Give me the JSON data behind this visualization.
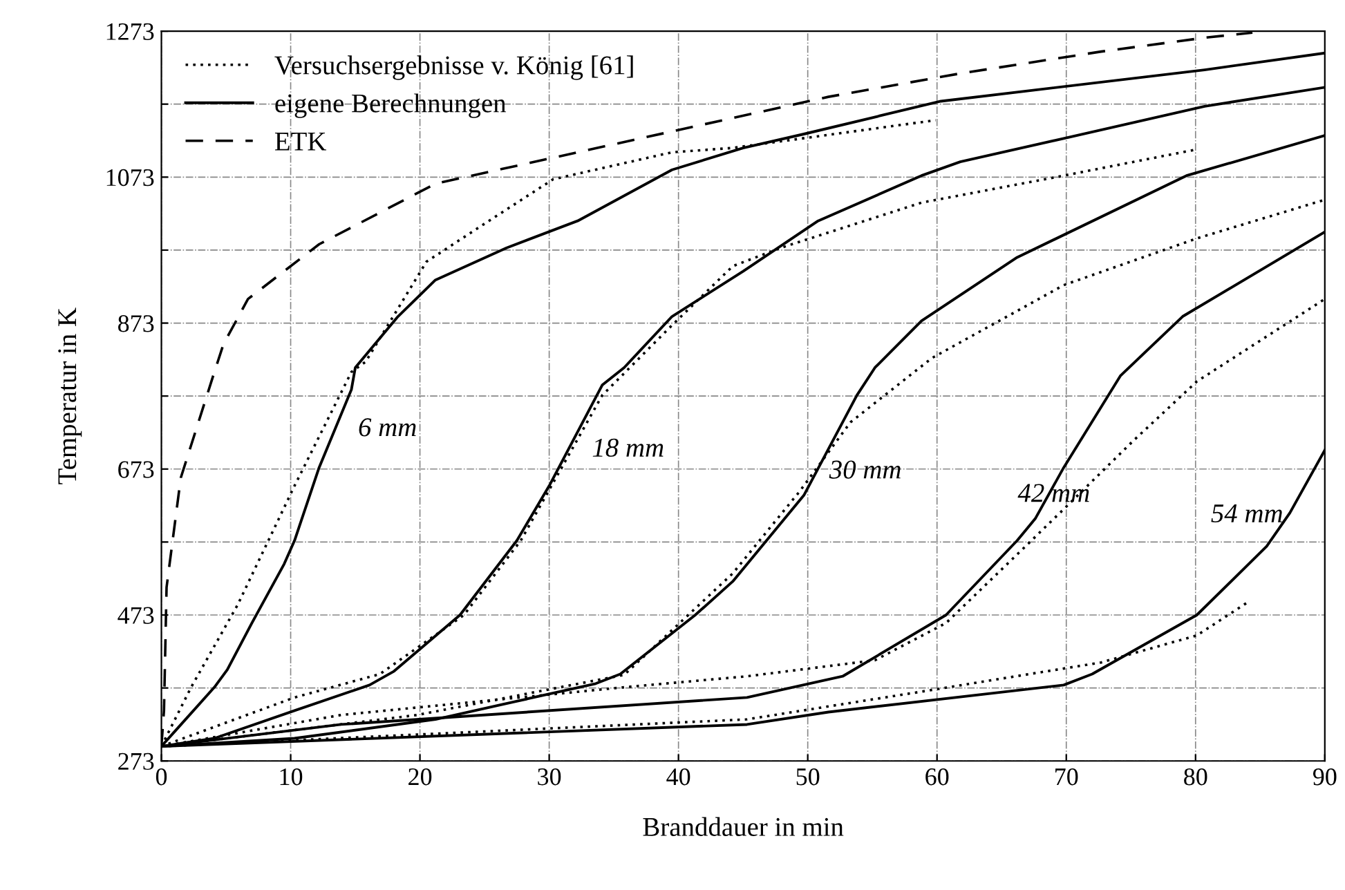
{
  "chart_data": {
    "type": "line",
    "xlabel": "Branddauer in min",
    "ylabel": "Temperatur in K",
    "xlim": [
      0,
      90
    ],
    "ylim": [
      273,
      1273
    ],
    "xticks": [
      0,
      10,
      20,
      30,
      40,
      50,
      60,
      70,
      80,
      90
    ],
    "yticks": [
      273,
      {
        "value": 373,
        "label": null
      },
      473,
      {
        "value": 573,
        "label": null
      },
      673,
      {
        "value": 773,
        "label": null
      },
      873,
      {
        "value": 973,
        "label": null
      },
      1073,
      {
        "value": 1173,
        "label": null
      },
      1273
    ],
    "grid": true,
    "legend": "top left",
    "marker": "none",
    "series": [
      {
        "name": "Versuchsergebnisse v. König [61]",
        "color": "#000000",
        "line_style": "dotted",
        "x": [
          0,
          2.3,
          5.9,
          10.3,
          14.7,
          15.8,
          20.5,
          24.9,
          30.3,
          39.5,
          44.2,
          59.9
        ],
        "values": [
          293,
          374,
          487,
          650,
          806,
          820,
          957,
          1008,
          1070,
          1107,
          1113,
          1151
        ]
      },
      {
        "name": "eigene Berechnungen",
        "color": "#000000",
        "line_style": "solid",
        "x": [
          0,
          4.1,
          5.1,
          7.0,
          9.5,
          10.3,
          12.2,
          14.7,
          15,
          18.3,
          21.2,
          26.7,
          32.2,
          39.5,
          45,
          49.7,
          60.3,
          80.7,
          90
        ],
        "values": [
          293,
          374,
          398,
          462,
          543,
          575,
          675,
          782,
          812,
          882,
          932,
          976,
          1013,
          1083,
          1113,
          1132,
          1177,
          1220,
          1243
        ]
      },
      {
        "name": "ETK",
        "color": "#000000",
        "line_style": "dashed",
        "x": [
          0,
          0.2,
          0.4,
          1.5,
          4.1,
          4.8,
          6.7,
          12.2,
          21.2,
          32.2,
          51.6,
          61.8,
          72.7,
          80.7,
          84.4
        ],
        "values": [
          293,
          342,
          511,
          661,
          806,
          844,
          906,
          981,
          1064,
          1107,
          1183,
          1215,
          1245,
          1264,
          1271
        ]
      },
      {
        "color": "#000000",
        "line_style": "dotted",
        "x": [
          0,
          10.3,
          16.9,
          23.4,
          27.8,
          34.1,
          39.5,
          44.2,
          47.9,
          58.8,
          69.8,
          80.1
        ],
        "values": [
          293,
          360,
          392,
          473,
          575,
          774,
          870,
          951,
          976,
          1038,
          1075,
          1111
        ]
      },
      {
        "color": "#000000",
        "line_style": "solid",
        "x": [
          0,
          4.1,
          10.3,
          16.1,
          18.0,
          23.1,
          27.5,
          30.0,
          34.1,
          35.8,
          39.5,
          45.0,
          50.8,
          58.8,
          61.8,
          69.8,
          80.7,
          90
        ],
        "values": [
          293,
          304,
          342,
          377,
          396,
          473,
          575,
          650,
          788,
          812,
          882,
          944,
          1013,
          1075,
          1094,
          1126,
          1170,
          1196
        ]
      },
      {
        "color": "#000000",
        "line_style": "dotted",
        "x": [
          0,
          19.8,
          35.8,
          44.2,
          49.4,
          53.3,
          59.6,
          69.8,
          80.1,
          90
        ],
        "values": [
          293,
          336,
          391,
          530,
          643,
          737,
          825,
          925,
          989,
          1042
        ]
      },
      {
        "color": "#000000",
        "line_style": "solid",
        "x": [
          0,
          10.3,
          21.2,
          33.6,
          35.5,
          41.3,
          44.2,
          49.7,
          53.8,
          55.2,
          58.8,
          66.2,
          79.3,
          90
        ],
        "values": [
          293,
          304,
          330,
          379,
          392,
          473,
          519,
          637,
          774,
          812,
          876,
          963,
          1075,
          1130
        ]
      },
      {
        "color": "#000000",
        "line_style": "dotted",
        "x": [
          0,
          13.9,
          35.8,
          45.3,
          55.2,
          60.7,
          66.2,
          69.8,
          75.2,
          80.1,
          90
        ],
        "values": [
          293,
          336,
          374,
          389,
          411,
          462,
          556,
          618,
          712,
          793,
          906
        ]
      },
      {
        "color": "#000000",
        "line_style": "solid",
        "x": [
          0,
          13.9,
          45.3,
          52.7,
          60.7,
          66.2,
          67.6,
          69.8,
          74.2,
          79,
          90
        ],
        "values": [
          293,
          323,
          360,
          389,
          473,
          575,
          605,
          675,
          801,
          882,
          998
        ]
      },
      {
        "color": "#000000",
        "line_style": "dotted",
        "x": [
          0,
          45.3,
          58.8,
          72.7,
          80.1,
          84
        ],
        "values": [
          293,
          330,
          368,
          408,
          445,
          490
        ]
      },
      {
        "color": "#000000",
        "line_style": "solid",
        "x": [
          0,
          45.3,
          51.6,
          69.8,
          72,
          80.1,
          85.5,
          87.3,
          90
        ],
        "values": [
          293,
          323,
          340,
          377,
          392,
          473,
          567,
          613,
          699
        ]
      }
    ],
    "annotations": [
      "6 mm",
      "18 mm",
      "30 mm",
      "42 mm",
      "54 mm"
    ]
  }
}
